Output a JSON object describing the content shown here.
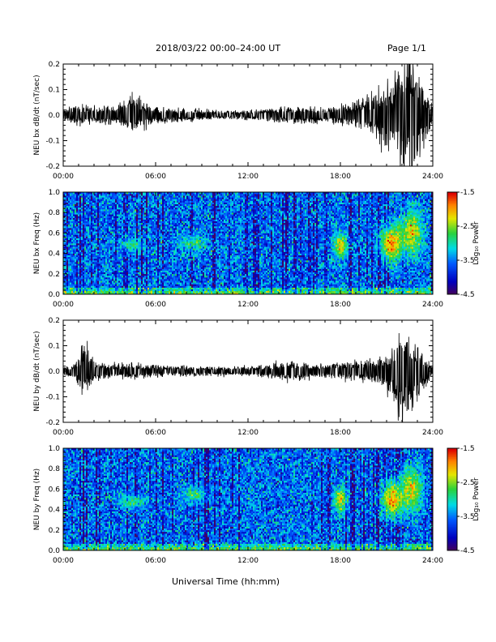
{
  "header": {
    "title": "2018/03/22  00:00–24:00 UT",
    "page": "Page 1/1"
  },
  "global_xlabel": "Universal Time (hh:mm)",
  "chart_data": [
    {
      "type": "line",
      "ylabel": "NEU bx dB/dt (nT/sec)",
      "ylim": [
        -0.2,
        0.2
      ],
      "yticks": [
        "-0.2",
        "-0.1",
        "0.0",
        "0.1",
        "0.2"
      ],
      "xlim": [
        0,
        24
      ],
      "xticks": [
        "00:00",
        "06:00",
        "12:00",
        "18:00",
        "24:00"
      ],
      "x_unit": "hours UT",
      "envelope": {
        "x": [
          0,
          1,
          2,
          3,
          4,
          4.5,
          5,
          6,
          7,
          8,
          9,
          10,
          11,
          12,
          13,
          14,
          15,
          16,
          17,
          18,
          19,
          20,
          20.5,
          21,
          21.5,
          22,
          22.5,
          23,
          23.5,
          24
        ],
        "upper": [
          0.02,
          0.035,
          0.03,
          0.03,
          0.045,
          0.09,
          0.05,
          0.03,
          0.025,
          0.022,
          0.02,
          0.015,
          0.015,
          0.015,
          0.02,
          0.025,
          0.03,
          0.035,
          0.025,
          0.035,
          0.05,
          0.06,
          0.09,
          0.1,
          0.12,
          0.2,
          0.2,
          0.16,
          0.09,
          0.04
        ],
        "lower": [
          -0.02,
          -0.035,
          -0.03,
          -0.03,
          -0.045,
          -0.07,
          -0.05,
          -0.03,
          -0.025,
          -0.022,
          -0.02,
          -0.015,
          -0.015,
          -0.015,
          -0.02,
          -0.025,
          -0.03,
          -0.035,
          -0.025,
          -0.035,
          -0.05,
          -0.06,
          -0.09,
          -0.12,
          -0.16,
          -0.2,
          -0.2,
          -0.15,
          -0.09,
          -0.04
        ]
      }
    },
    {
      "type": "heatmap",
      "ylabel": "NEU bx Freq (Hz)",
      "ylim": [
        0.0,
        1.0
      ],
      "yticks": [
        "0.0",
        "0.2",
        "0.4",
        "0.6",
        "0.8",
        "1.0"
      ],
      "xlim": [
        0,
        24
      ],
      "xticks": [
        "00:00",
        "06:00",
        "12:00",
        "18:00",
        "24:00"
      ],
      "colorbar": {
        "label": "Log₁₀ Power",
        "range": [
          -4.5,
          -1.5
        ],
        "ticks": [
          "-1.5",
          "-2.5",
          "-3.5",
          "-4.5"
        ]
      },
      "features": [
        {
          "t": 4.5,
          "f": 0.48,
          "sigma_t": 0.5,
          "sigma_f": 0.04,
          "level": -2.8
        },
        {
          "t": 8.5,
          "f": 0.5,
          "sigma_t": 0.6,
          "sigma_f": 0.06,
          "level": -2.8
        },
        {
          "t": 18.0,
          "f": 0.48,
          "sigma_t": 0.3,
          "sigma_f": 0.08,
          "level": -2.1
        },
        {
          "t": 21.3,
          "f": 0.5,
          "sigma_t": 0.5,
          "sigma_f": 0.12,
          "level": -1.9
        },
        {
          "t": 22.6,
          "f": 0.6,
          "sigma_t": 0.5,
          "sigma_f": 0.15,
          "level": -2.2
        }
      ]
    },
    {
      "type": "line",
      "ylabel": "NEU by dB/dt (nT/sec)",
      "ylim": [
        -0.2,
        0.2
      ],
      "yticks": [
        "-0.2",
        "-0.1",
        "0.0",
        "0.1",
        "0.2"
      ],
      "xlim": [
        0,
        24
      ],
      "xticks": [
        "00:00",
        "06:00",
        "12:00",
        "18:00",
        "24:00"
      ],
      "x_unit": "hours UT",
      "envelope": {
        "x": [
          0,
          0.5,
          1,
          1.5,
          2,
          3,
          4,
          4.5,
          5,
          6,
          7,
          8,
          9,
          10,
          11,
          12,
          13,
          14,
          15,
          16,
          17,
          18,
          19,
          20,
          20.5,
          21,
          21.5,
          22,
          22.5,
          23,
          23.5,
          24
        ],
        "upper": [
          0.015,
          0.02,
          0.05,
          0.11,
          0.04,
          0.025,
          0.025,
          0.035,
          0.025,
          0.02,
          0.018,
          0.02,
          0.018,
          0.015,
          0.015,
          0.015,
          0.02,
          0.03,
          0.035,
          0.025,
          0.025,
          0.03,
          0.035,
          0.04,
          0.05,
          0.06,
          0.08,
          0.16,
          0.14,
          0.1,
          0.05,
          0.02
        ],
        "lower": [
          -0.015,
          -0.02,
          -0.05,
          -0.09,
          -0.04,
          -0.025,
          -0.025,
          -0.035,
          -0.025,
          -0.02,
          -0.018,
          -0.02,
          -0.018,
          -0.015,
          -0.015,
          -0.015,
          -0.02,
          -0.03,
          -0.035,
          -0.025,
          -0.025,
          -0.03,
          -0.035,
          -0.04,
          -0.05,
          -0.07,
          -0.1,
          -0.2,
          -0.15,
          -0.1,
          -0.05,
          -0.02
        ]
      }
    },
    {
      "type": "heatmap",
      "ylabel": "NEU by Freq (Hz)",
      "ylim": [
        0.0,
        1.0
      ],
      "yticks": [
        "0.0",
        "0.2",
        "0.4",
        "0.6",
        "0.8",
        "1.0"
      ],
      "xlim": [
        0,
        24
      ],
      "xticks": [
        "00:00",
        "06:00",
        "12:00",
        "18:00",
        "24:00"
      ],
      "colorbar": {
        "label": "Log₁₀ Power",
        "range": [
          -4.5,
          -1.5
        ],
        "ticks": [
          "-1.5",
          "-2.5",
          "-3.5",
          "-4.5"
        ]
      },
      "features": [
        {
          "t": 4.5,
          "f": 0.48,
          "sigma_t": 0.6,
          "sigma_f": 0.05,
          "level": -2.9
        },
        {
          "t": 8.5,
          "f": 0.55,
          "sigma_t": 0.6,
          "sigma_f": 0.06,
          "level": -2.9
        },
        {
          "t": 18.0,
          "f": 0.5,
          "sigma_t": 0.3,
          "sigma_f": 0.08,
          "level": -2.2
        },
        {
          "t": 21.4,
          "f": 0.5,
          "sigma_t": 0.5,
          "sigma_f": 0.12,
          "level": -1.9
        },
        {
          "t": 22.6,
          "f": 0.6,
          "sigma_t": 0.5,
          "sigma_f": 0.15,
          "level": -2.3
        }
      ]
    }
  ]
}
